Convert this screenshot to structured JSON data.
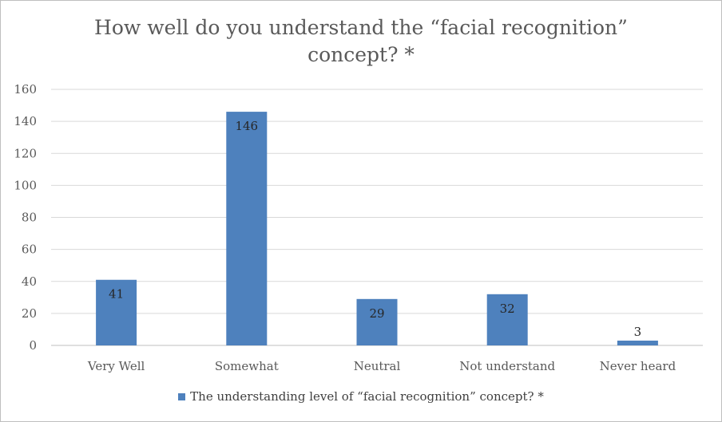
{
  "chart_data": {
    "type": "bar",
    "title": "How well do you understand the “facial recognition”\nconcept? *",
    "categories": [
      "Very Well",
      "Somewhat",
      "Neutral",
      "Not understand",
      "Never heard"
    ],
    "series": [
      {
        "name": "The understanding level of “facial recognition” concept? *",
        "values": [
          41,
          146,
          29,
          32,
          3
        ],
        "color": "#4e81bd"
      }
    ],
    "ylim": [
      0,
      160
    ],
    "yticks": [
      0,
      20,
      40,
      60,
      80,
      100,
      120,
      140,
      160
    ],
    "grid": true,
    "legend": "bottom",
    "data_labels": true
  }
}
